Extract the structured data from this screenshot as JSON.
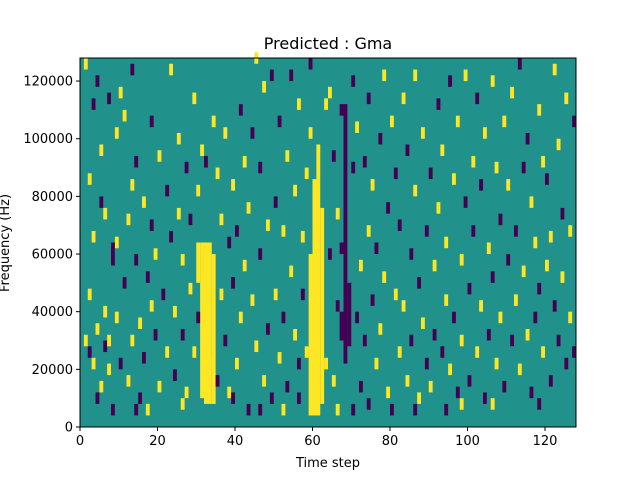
{
  "chart_data": {
    "type": "heatmap",
    "title": "Predicted : Gma",
    "xlabel": "Time step",
    "ylabel": "Frequency (Hz)",
    "xlim": [
      0,
      128
    ],
    "ylim": [
      0,
      128000
    ],
    "x_ticks": [
      0,
      20,
      40,
      60,
      80,
      100,
      120
    ],
    "y_ticks": [
      0,
      20000,
      40000,
      60000,
      80000,
      100000,
      120000
    ],
    "x_tick_labels": [
      "0",
      "20",
      "40",
      "60",
      "80",
      "100",
      "120"
    ],
    "y_tick_labels": [
      "0",
      "20000",
      "40000",
      "60000",
      "80000",
      "100000",
      "120000"
    ],
    "colormap": "viridis",
    "background_value": 0.5,
    "colors": {
      "low": "#440154",
      "mid": "#21918c",
      "high": "#fde725"
    },
    "grid": false,
    "legend": "none",
    "bands": [
      {
        "value": 1.0,
        "x": [
          60,
          62
        ],
        "y": [
          4000,
          86000
        ]
      },
      {
        "value": 1.0,
        "x": [
          59,
          60
        ],
        "y": [
          4000,
          60000
        ]
      },
      {
        "value": 1.0,
        "x": [
          62,
          63
        ],
        "y": [
          8000,
          76000
        ]
      },
      {
        "value": 1.0,
        "x": [
          61,
          62
        ],
        "y": [
          86000,
          98000
        ]
      },
      {
        "value": 1.0,
        "x": [
          32,
          34
        ],
        "y": [
          8000,
          64000
        ]
      },
      {
        "value": 1.0,
        "x": [
          31,
          32
        ],
        "y": [
          10000,
          64000
        ]
      },
      {
        "value": 1.0,
        "x": [
          34,
          35
        ],
        "y": [
          8000,
          60000
        ]
      },
      {
        "value": 1.0,
        "x": [
          30,
          31
        ],
        "y": [
          50000,
          64000
        ]
      },
      {
        "value": 0.0,
        "x": [
          68,
          69
        ],
        "y": [
          22000,
          112000
        ]
      },
      {
        "value": 0.0,
        "x": [
          69,
          70
        ],
        "y": [
          28000,
          50000
        ]
      },
      {
        "value": 0.0,
        "x": [
          67,
          68
        ],
        "y": [
          30000,
          40000
        ]
      }
    ],
    "cells": [
      [
        1,
        124000,
        1
      ],
      [
        1,
        28000,
        1
      ],
      [
        2,
        24000,
        0
      ],
      [
        2,
        84000,
        1
      ],
      [
        2,
        44000,
        1
      ],
      [
        3,
        110000,
        0
      ],
      [
        3,
        64000,
        1
      ],
      [
        3,
        20000,
        1
      ],
      [
        4,
        8000,
        0
      ],
      [
        4,
        118000,
        0
      ],
      [
        4,
        32000,
        1
      ],
      [
        5,
        94000,
        1
      ],
      [
        5,
        76000,
        0
      ],
      [
        5,
        12000,
        1
      ],
      [
        6,
        26000,
        0
      ],
      [
        6,
        38000,
        1
      ],
      [
        6,
        72000,
        1
      ],
      [
        7,
        112000,
        0
      ],
      [
        7,
        28000,
        1
      ],
      [
        7,
        18000,
        1
      ],
      [
        8,
        56000,
        0
      ],
      [
        8,
        4000,
        0
      ],
      [
        9,
        100000,
        1
      ],
      [
        9,
        62000,
        1
      ],
      [
        9,
        36000,
        1
      ],
      [
        10,
        114000,
        1
      ],
      [
        10,
        20000,
        0
      ],
      [
        11,
        106000,
        1
      ],
      [
        11,
        48000,
        0
      ],
      [
        12,
        70000,
        1
      ],
      [
        12,
        14000,
        1
      ],
      [
        13,
        82000,
        1
      ],
      [
        13,
        122000,
        0
      ],
      [
        13,
        28000,
        1
      ],
      [
        14,
        90000,
        0
      ],
      [
        14,
        56000,
        0
      ],
      [
        15,
        34000,
        1
      ],
      [
        15,
        8000,
        0
      ],
      [
        16,
        76000,
        1
      ],
      [
        16,
        22000,
        0
      ],
      [
        17,
        50000,
        0
      ],
      [
        17,
        4000,
        1
      ],
      [
        18,
        68000,
        0
      ],
      [
        18,
        104000,
        0
      ],
      [
        18,
        40000,
        1
      ],
      [
        19,
        30000,
        0
      ],
      [
        19,
        58000,
        1
      ],
      [
        20,
        92000,
        1
      ],
      [
        20,
        12000,
        1
      ],
      [
        21,
        44000,
        0
      ],
      [
        22,
        80000,
        0
      ],
      [
        22,
        24000,
        1
      ],
      [
        23,
        122000,
        1
      ],
      [
        23,
        64000,
        0
      ],
      [
        24,
        38000,
        1
      ],
      [
        24,
        16000,
        0
      ],
      [
        25,
        72000,
        1
      ],
      [
        25,
        98000,
        1
      ],
      [
        26,
        56000,
        1
      ],
      [
        26,
        30000,
        0
      ],
      [
        27,
        88000,
        0
      ],
      [
        27,
        10000,
        1
      ],
      [
        28,
        46000,
        1
      ],
      [
        28,
        70000,
        0
      ],
      [
        29,
        24000,
        1
      ],
      [
        29,
        112000,
        1
      ],
      [
        30,
        80000,
        1
      ],
      [
        30,
        36000,
        0
      ],
      [
        31,
        94000,
        1
      ],
      [
        32,
        90000,
        0
      ],
      [
        33,
        20000,
        1
      ],
      [
        34,
        104000,
        1
      ],
      [
        35,
        86000,
        1
      ],
      [
        35,
        14000,
        0
      ],
      [
        36,
        70000,
        1
      ],
      [
        36,
        44000,
        1
      ],
      [
        37,
        100000,
        1
      ],
      [
        37,
        28000,
        0
      ],
      [
        38,
        62000,
        0
      ],
      [
        38,
        10000,
        1
      ],
      [
        39,
        82000,
        1
      ],
      [
        39,
        48000,
        0
      ],
      [
        40,
        66000,
        0
      ],
      [
        40,
        20000,
        1
      ],
      [
        41,
        108000,
        0
      ],
      [
        41,
        36000,
        1
      ],
      [
        42,
        90000,
        1
      ],
      [
        42,
        54000,
        1
      ],
      [
        43,
        74000,
        1
      ],
      [
        43,
        4000,
        0
      ],
      [
        44,
        100000,
        0
      ],
      [
        44,
        42000,
        1
      ],
      [
        45,
        126000,
        1
      ],
      [
        45,
        26000,
        1
      ],
      [
        46,
        58000,
        0
      ],
      [
        46,
        88000,
        0
      ],
      [
        47,
        14000,
        1
      ],
      [
        47,
        116000,
        1
      ],
      [
        48,
        68000,
        1
      ],
      [
        48,
        32000,
        0
      ],
      [
        49,
        120000,
        0
      ],
      [
        49,
        8000,
        0
      ],
      [
        50,
        76000,
        0
      ],
      [
        50,
        44000,
        1
      ],
      [
        51,
        22000,
        1
      ],
      [
        51,
        104000,
        0
      ],
      [
        52,
        66000,
        1
      ],
      [
        52,
        36000,
        0
      ],
      [
        53,
        92000,
        1
      ],
      [
        53,
        12000,
        0
      ],
      [
        54,
        120000,
        0
      ],
      [
        54,
        52000,
        1
      ],
      [
        55,
        30000,
        1
      ],
      [
        55,
        80000,
        1
      ],
      [
        56,
        110000,
        1
      ],
      [
        56,
        20000,
        0
      ],
      [
        57,
        64000,
        1
      ],
      [
        57,
        44000,
        0
      ],
      [
        58,
        86000,
        1
      ],
      [
        58,
        24000,
        1
      ],
      [
        59,
        124000,
        0
      ],
      [
        59,
        100000,
        1
      ],
      [
        63,
        110000,
        1
      ],
      [
        63,
        20000,
        1
      ],
      [
        64,
        114000,
        1
      ],
      [
        64,
        58000,
        0
      ],
      [
        65,
        92000,
        0
      ],
      [
        65,
        14000,
        1
      ],
      [
        66,
        40000,
        0
      ],
      [
        66,
        72000,
        1
      ],
      [
        67,
        108000,
        0
      ],
      [
        67,
        60000,
        0
      ],
      [
        70,
        118000,
        0
      ],
      [
        70,
        88000,
        0
      ],
      [
        71,
        102000,
        1
      ],
      [
        71,
        36000,
        0
      ],
      [
        72,
        12000,
        0
      ],
      [
        72,
        54000,
        1
      ],
      [
        73,
        90000,
        0
      ],
      [
        73,
        28000,
        0
      ],
      [
        74,
        66000,
        1
      ],
      [
        74,
        112000,
        0
      ],
      [
        75,
        42000,
        0
      ],
      [
        75,
        82000,
        1
      ],
      [
        76,
        20000,
        1
      ],
      [
        76,
        60000,
        0
      ],
      [
        77,
        98000,
        0
      ],
      [
        77,
        32000,
        1
      ],
      [
        78,
        120000,
        1
      ],
      [
        78,
        50000,
        1
      ],
      [
        79,
        74000,
        0
      ],
      [
        79,
        10000,
        1
      ],
      [
        80,
        4000,
        0
      ],
      [
        80,
        104000,
        1
      ],
      [
        81,
        44000,
        1
      ],
      [
        81,
        86000,
        0
      ],
      [
        82,
        24000,
        1
      ],
      [
        82,
        68000,
        0
      ],
      [
        83,
        112000,
        1
      ],
      [
        83,
        40000,
        1
      ],
      [
        84,
        14000,
        1
      ],
      [
        84,
        94000,
        0
      ],
      [
        85,
        58000,
        0
      ],
      [
        85,
        28000,
        0
      ],
      [
        86,
        80000,
        1
      ],
      [
        86,
        120000,
        1
      ],
      [
        87,
        48000,
        0
      ],
      [
        87,
        8000,
        1
      ],
      [
        88,
        100000,
        1
      ],
      [
        88,
        34000,
        1
      ],
      [
        89,
        66000,
        0
      ],
      [
        89,
        20000,
        0
      ],
      [
        90,
        86000,
        0
      ],
      [
        90,
        12000,
        1
      ],
      [
        91,
        54000,
        1
      ],
      [
        91,
        30000,
        0
      ],
      [
        92,
        110000,
        0
      ],
      [
        92,
        74000,
        1
      ],
      [
        93,
        24000,
        0
      ],
      [
        93,
        94000,
        1
      ],
      [
        94,
        42000,
        1
      ],
      [
        94,
        62000,
        1
      ],
      [
        95,
        18000,
        1
      ],
      [
        95,
        118000,
        0
      ],
      [
        96,
        84000,
        1
      ],
      [
        96,
        36000,
        0
      ],
      [
        97,
        104000,
        1
      ],
      [
        97,
        10000,
        0
      ],
      [
        98,
        56000,
        1
      ],
      [
        98,
        28000,
        1
      ],
      [
        99,
        76000,
        0
      ],
      [
        99,
        120000,
        1
      ],
      [
        100,
        46000,
        0
      ],
      [
        100,
        14000,
        0
      ],
      [
        101,
        90000,
        1
      ],
      [
        101,
        66000,
        0
      ],
      [
        102,
        24000,
        1
      ],
      [
        102,
        112000,
        0
      ],
      [
        103,
        82000,
        0
      ],
      [
        103,
        40000,
        1
      ],
      [
        104,
        100000,
        1
      ],
      [
        104,
        8000,
        0
      ],
      [
        105,
        60000,
        1
      ],
      [
        105,
        30000,
        0
      ],
      [
        106,
        118000,
        1
      ],
      [
        106,
        50000,
        0
      ],
      [
        107,
        20000,
        1
      ],
      [
        107,
        88000,
        1
      ],
      [
        108,
        70000,
        0
      ],
      [
        108,
        36000,
        1
      ],
      [
        109,
        104000,
        1
      ],
      [
        109,
        12000,
        0
      ],
      [
        110,
        56000,
        0
      ],
      [
        110,
        82000,
        1
      ],
      [
        111,
        28000,
        0
      ],
      [
        111,
        114000,
        1
      ],
      [
        112,
        42000,
        1
      ],
      [
        112,
        66000,
        0
      ],
      [
        113,
        124000,
        0
      ],
      [
        113,
        18000,
        1
      ],
      [
        114,
        88000,
        0
      ],
      [
        114,
        52000,
        1
      ],
      [
        115,
        30000,
        1
      ],
      [
        115,
        98000,
        0
      ],
      [
        116,
        76000,
        1
      ],
      [
        116,
        10000,
        0
      ],
      [
        117,
        62000,
        1
      ],
      [
        117,
        36000,
        0
      ],
      [
        118,
        108000,
        1
      ],
      [
        118,
        46000,
        0
      ],
      [
        119,
        90000,
        1
      ],
      [
        119,
        24000,
        1
      ],
      [
        120,
        84000,
        0
      ],
      [
        120,
        54000,
        1
      ],
      [
        121,
        64000,
        1
      ],
      [
        121,
        14000,
        0
      ],
      [
        122,
        122000,
        1
      ],
      [
        122,
        40000,
        0
      ],
      [
        123,
        96000,
        1
      ],
      [
        123,
        28000,
        0
      ],
      [
        124,
        72000,
        0
      ],
      [
        124,
        50000,
        1
      ],
      [
        125,
        112000,
        1
      ],
      [
        125,
        20000,
        0
      ],
      [
        126,
        66000,
        1
      ],
      [
        126,
        36000,
        1
      ],
      [
        127,
        24000,
        0
      ],
      [
        127,
        104000,
        0
      ],
      [
        94,
        4000,
        0
      ],
      [
        86,
        4000,
        0
      ],
      [
        46,
        4000,
        0
      ],
      [
        39,
        8000,
        0
      ],
      [
        56,
        8000,
        0
      ],
      [
        74,
        6000,
        0
      ],
      [
        26,
        6000,
        1
      ],
      [
        8,
        60000,
        0
      ],
      [
        106,
        6000,
        1
      ],
      [
        118,
        6000,
        0
      ],
      [
        98,
        6000,
        1
      ],
      [
        14,
        4000,
        0
      ],
      [
        52,
        4000,
        1
      ],
      [
        66,
        4000,
        1
      ],
      [
        70,
        4000,
        0
      ]
    ]
  }
}
